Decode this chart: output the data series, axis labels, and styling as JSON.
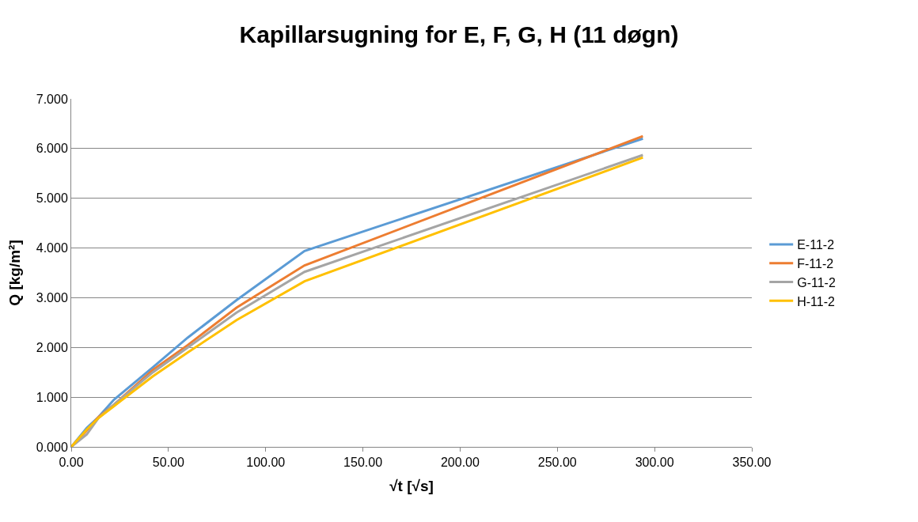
{
  "chart_data": {
    "type": "line",
    "title": "Kapillarsugning for E, F, G, H (11 døgn)",
    "xlabel": "√t [√s]",
    "ylabel": "Q [kg/m²]",
    "x": [
      0,
      8,
      14,
      22,
      42,
      60,
      85,
      120,
      294
    ],
    "series": [
      {
        "name": "E-11-2",
        "color": "#5b9bd5",
        "values": [
          0,
          0.38,
          0.6,
          0.95,
          1.6,
          2.2,
          2.95,
          3.94,
          6.2
        ]
      },
      {
        "name": "F-11-2",
        "color": "#ed7d31",
        "values": [
          0,
          0.33,
          0.6,
          0.85,
          1.55,
          2.05,
          2.8,
          3.65,
          6.25
        ]
      },
      {
        "name": "G-11-2",
        "color": "#a5a5a5",
        "values": [
          0,
          0.25,
          0.58,
          0.85,
          1.5,
          2.0,
          2.7,
          3.52,
          5.87
        ]
      },
      {
        "name": "H-11-2",
        "color": "#ffc000",
        "values": [
          0,
          0.35,
          0.58,
          0.82,
          1.42,
          1.9,
          2.55,
          3.33,
          5.82
        ]
      }
    ],
    "xlim": [
      0,
      350
    ],
    "xticks": [
      {
        "value": 0,
        "label": "0.00"
      },
      {
        "value": 50,
        "label": "50.00"
      },
      {
        "value": 100,
        "label": "100.00"
      },
      {
        "value": 150,
        "label": "150.00"
      },
      {
        "value": 200,
        "label": "200.00"
      },
      {
        "value": 250,
        "label": "250.00"
      },
      {
        "value": 300,
        "label": "300.00"
      },
      {
        "value": 350,
        "label": "350.00"
      }
    ],
    "ylim": [
      0,
      7
    ],
    "yticks": [
      {
        "value": 0,
        "label": "0.000"
      },
      {
        "value": 1,
        "label": "1.000"
      },
      {
        "value": 2,
        "label": "2.000"
      },
      {
        "value": 3,
        "label": "3.000"
      },
      {
        "value": 4,
        "label": "4.000"
      },
      {
        "value": 5,
        "label": "5.000"
      },
      {
        "value": 6,
        "label": "6.000"
      },
      {
        "value": 7,
        "label": "7.000"
      }
    ],
    "grid": "y",
    "legend": "right",
    "marker": "none",
    "line_style": "solid"
  }
}
